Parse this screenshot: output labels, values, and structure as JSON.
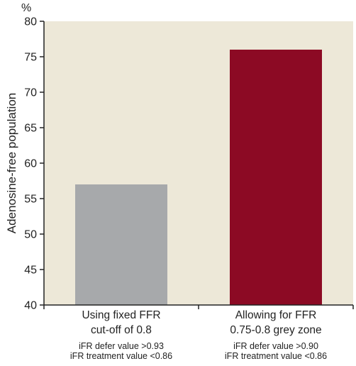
{
  "chart_data": {
    "type": "bar",
    "unit_label": "%",
    "ylabel": "Adenosine-free population",
    "xlabel": "",
    "ylim": [
      40,
      80
    ],
    "yticks": [
      40,
      45,
      50,
      55,
      60,
      65,
      70,
      75,
      80
    ],
    "categories": [
      {
        "lines": [
          "Using fixed FFR",
          "cut-off of 0.8"
        ],
        "sub_lines": [
          "iFR defer value >0.93",
          "iFR treatment value <0.86"
        ]
      },
      {
        "lines": [
          "Allowing for FFR",
          "0.75-0.8 grey zone"
        ],
        "sub_lines": [
          "iFR defer value >0.90",
          "iFR treatment value <0.86"
        ]
      }
    ],
    "values": [
      57,
      76
    ],
    "colors": [
      "#a7a9ab",
      "#8c0a24"
    ],
    "plot_background": "#ede8d8",
    "grid": false,
    "legend": "none"
  }
}
